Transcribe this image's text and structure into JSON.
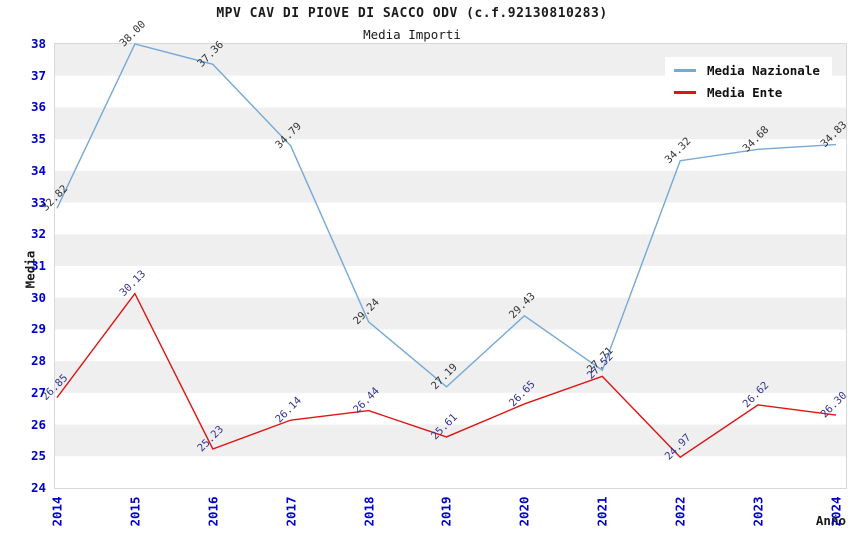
{
  "header": {
    "title": "MPV CAV DI PIOVE DI SACCO ODV (c.f.92130810283)",
    "subtitle": "Media Importi"
  },
  "chart_data": {
    "type": "line",
    "x": [
      2014,
      2015,
      2016,
      2017,
      2018,
      2019,
      2020,
      2021,
      2022,
      2023,
      2024
    ],
    "xlabel": "Anno",
    "ylabel": "Media",
    "ylim": [
      24,
      38
    ],
    "ytick_step": 1,
    "grid": "alternating-horizontal-bands",
    "legend_position": "top-right",
    "point_labels": "values shown at each vertex, rotated 45deg, two decimals",
    "series": [
      {
        "name": "Media Nazionale",
        "color": "#74a9d8",
        "label_color": "#333333",
        "values": [
          32.82,
          38.0,
          37.36,
          34.79,
          29.24,
          27.19,
          29.43,
          27.71,
          34.32,
          34.68,
          34.83
        ]
      },
      {
        "name": "Media Ente",
        "color": "#dd1515",
        "label_color": "#333399",
        "values": [
          26.85,
          30.13,
          25.23,
          26.14,
          26.44,
          25.61,
          26.65,
          27.52,
          24.97,
          26.62,
          26.3
        ]
      }
    ]
  },
  "colors": {
    "tick_label": "#0000cc",
    "band": "#efefef",
    "plot_border": "#d8d8d8",
    "background": "#ffffff",
    "title_text": "#1a1a1a"
  }
}
